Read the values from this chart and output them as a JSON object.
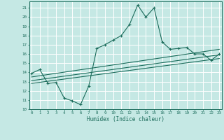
{
  "xlabel": "Humidex (Indice chaleur)",
  "x_ticks": [
    0,
    1,
    2,
    3,
    4,
    5,
    6,
    7,
    8,
    9,
    10,
    11,
    12,
    13,
    14,
    15,
    16,
    17,
    18,
    19,
    20,
    21,
    22,
    23
  ],
  "y_ticks": [
    10,
    11,
    12,
    13,
    14,
    15,
    16,
    17,
    18,
    19,
    20,
    21
  ],
  "xlim": [
    -0.3,
    23.3
  ],
  "ylim": [
    10,
    21.7
  ],
  "bg_color": "#c5e8e4",
  "grid_color": "#ffffff",
  "line_color": "#1a6b5a",
  "main_line_x": [
    0,
    1,
    2,
    3,
    4,
    5,
    6,
    7,
    8,
    9,
    10,
    11,
    12,
    13,
    14,
    15,
    16,
    17,
    18,
    19,
    20,
    21,
    22,
    23
  ],
  "main_line_y": [
    13.9,
    14.3,
    12.8,
    12.9,
    11.2,
    10.9,
    10.5,
    12.5,
    16.6,
    17.0,
    17.5,
    18.0,
    19.2,
    21.3,
    20.0,
    21.0,
    17.3,
    16.5,
    16.6,
    16.7,
    16.0,
    16.0,
    15.3,
    16.0
  ],
  "line2_x": [
    0,
    23
  ],
  "line2_y": [
    13.5,
    16.5
  ],
  "line3_x": [
    0,
    23
  ],
  "line3_y": [
    13.1,
    15.9
  ],
  "line4_x": [
    0,
    23
  ],
  "line4_y": [
    12.8,
    15.5
  ]
}
